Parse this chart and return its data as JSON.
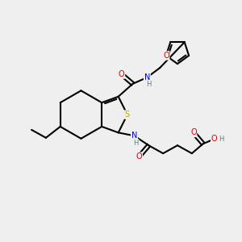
{
  "background_color": "#efefef",
  "atom_colors": {
    "C": "#000000",
    "N": "#0000cc",
    "O": "#dd0000",
    "S": "#bbaa00",
    "H": "#448888"
  },
  "figsize": [
    3.0,
    3.0
  ],
  "dpi": 100
}
